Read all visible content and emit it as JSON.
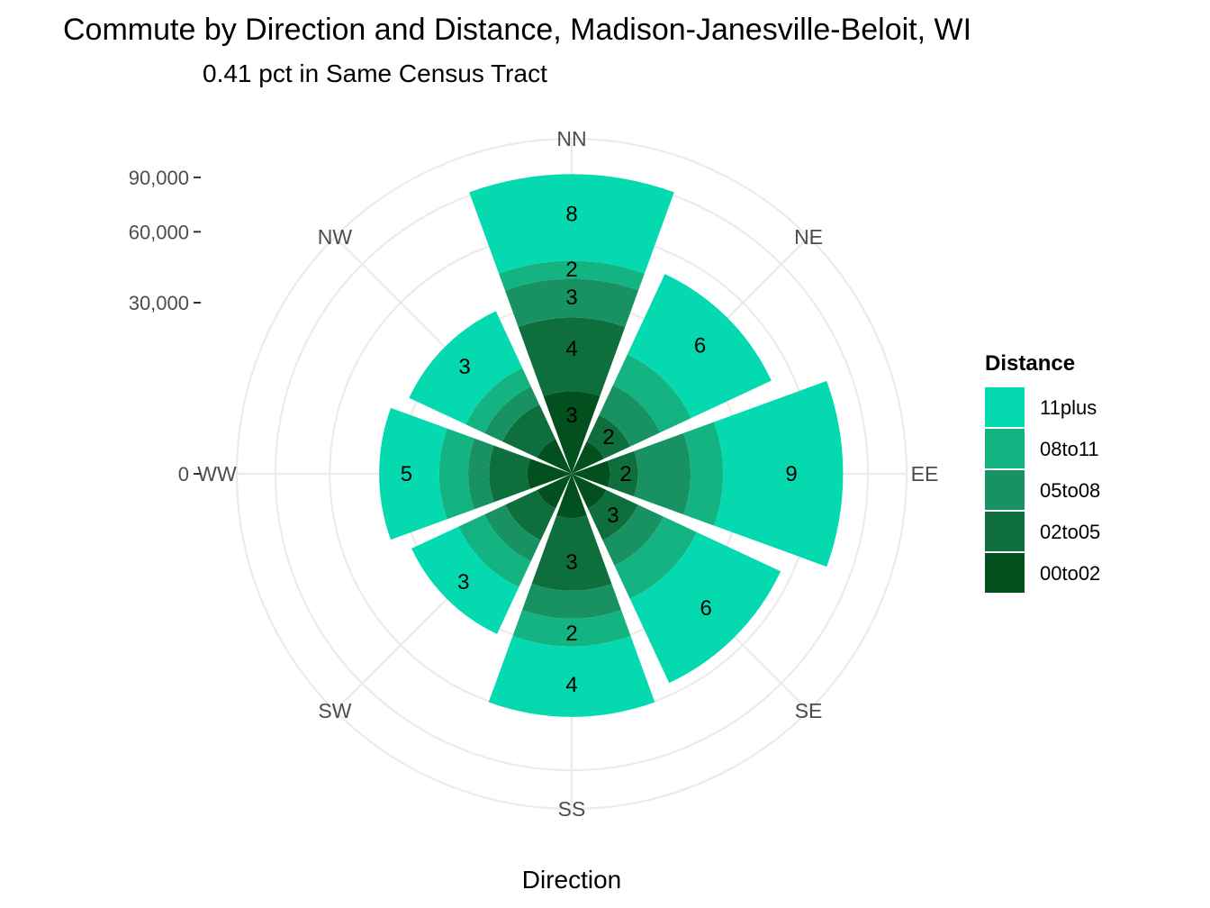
{
  "chart_data": {
    "type": "bar",
    "coord": "polar",
    "title": "Commute by Direction and Distance, Madison-Janesville-Beloit, WI",
    "subtitle": "0.41 pct in Same Census Tract",
    "xlabel": "Direction",
    "ylabel": "",
    "categories": [
      "NN",
      "NE",
      "EE",
      "SE",
      "SS",
      "SW",
      "WW",
      "NW"
    ],
    "y_ticks": [
      0,
      30000,
      60000,
      90000
    ],
    "y_tick_labels": [
      "0",
      "30,000",
      "60,000",
      "90,000"
    ],
    "ylim": [
      0,
      115000
    ],
    "legend_title": "Distance",
    "legend_position": "right",
    "grid": true,
    "series": [
      {
        "name": "00to02",
        "color": "#03501f",
        "values": [
          7000,
          1300,
          1500,
          1500,
          2000,
          1500,
          2000,
          1500
        ],
        "labels": [
          "3",
          "",
          "",
          "",
          "",
          "",
          "",
          ""
        ]
      },
      {
        "name": "02to05",
        "color": "#0f6f3c",
        "values": [
          18000,
          3000,
          3000,
          4000,
          12000,
          4000,
          5000,
          4500
        ],
        "labels": [
          "4",
          "2",
          "2",
          "3",
          "3",
          "",
          "",
          ""
        ]
      },
      {
        "name": "05to08",
        "color": "#189263",
        "values": [
          14000,
          5500,
          10000,
          5000,
          7500,
          4000,
          4000,
          3500
        ],
        "labels": [
          "3",
          "",
          "",
          "",
          "",
          "",
          "",
          ""
        ]
      },
      {
        "name": "08to11",
        "color": "#13b382",
        "values": [
          7500,
          8000,
          9000,
          9000,
          9000,
          6500,
          7000,
          4500
        ],
        "labels": [
          "2",
          "",
          "",
          "",
          "2",
          "",
          "",
          ""
        ]
      },
      {
        "name": "11plus",
        "color": "#04d9b0",
        "values": [
          45500,
          32000,
          52000,
          35000,
          30000,
          16000,
          20000,
          19000
        ],
        "labels": [
          "8",
          "6",
          "9",
          "6",
          "4",
          "3",
          "5",
          "3"
        ]
      }
    ],
    "legend_order": [
      "11plus",
      "08to11",
      "05to08",
      "02to05",
      "00to02"
    ]
  }
}
